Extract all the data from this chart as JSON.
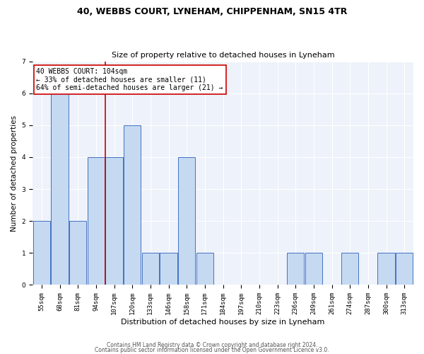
{
  "title1": "40, WEBBS COURT, LYNEHAM, CHIPPENHAM, SN15 4TR",
  "title2": "Size of property relative to detached houses in Lyneham",
  "xlabel": "Distribution of detached houses by size in Lyneham",
  "ylabel": "Number of detached properties",
  "categories": [
    "55sqm",
    "68sqm",
    "81sqm",
    "94sqm",
    "107sqm",
    "120sqm",
    "133sqm",
    "146sqm",
    "158sqm",
    "171sqm",
    "184sqm",
    "197sqm",
    "210sqm",
    "223sqm",
    "236sqm",
    "249sqm",
    "261sqm",
    "274sqm",
    "287sqm",
    "300sqm",
    "313sqm"
  ],
  "values": [
    2,
    6,
    2,
    4,
    4,
    5,
    1,
    1,
    4,
    1,
    0,
    0,
    0,
    0,
    1,
    1,
    0,
    1,
    0,
    1,
    1
  ],
  "bar_color": "#c5d9f1",
  "bar_edge_color": "#4472c4",
  "red_line_x": 3.5,
  "annotation_line1": "40 WEBBS COURT: 104sqm",
  "annotation_line2": "← 33% of detached houses are smaller (11)",
  "annotation_line3": "64% of semi-detached houses are larger (21) →",
  "annotation_box_color": "#ffffff",
  "annotation_box_edge": "#cc0000",
  "red_line_color": "#cc0000",
  "ylim": [
    0,
    7
  ],
  "yticks": [
    0,
    1,
    2,
    3,
    4,
    5,
    6,
    7
  ],
  "footer1": "Contains HM Land Registry data © Crown copyright and database right 2024.",
  "footer2": "Contains public sector information licensed under the Open Government Licence v3.0.",
  "title1_fontsize": 9,
  "title2_fontsize": 8,
  "xlabel_fontsize": 8,
  "ylabel_fontsize": 7.5,
  "tick_fontsize": 6.5,
  "footer_fontsize": 5.5,
  "annotation_fontsize": 7,
  "bg_color": "#eef2fa"
}
